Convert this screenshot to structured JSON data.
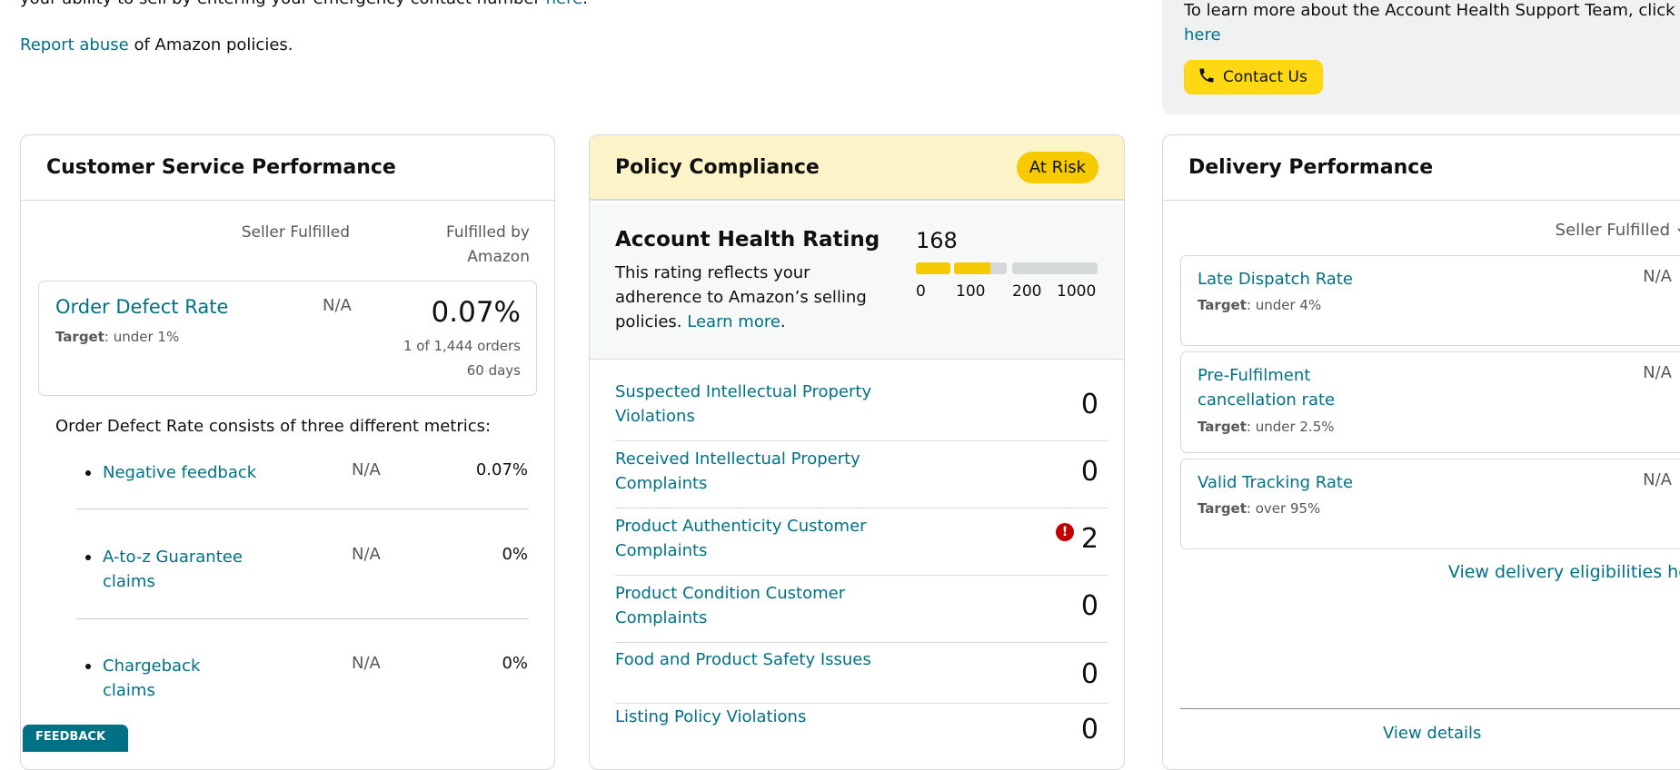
{
  "top": {
    "cut_text": "your ability to sell by entering your emergency contact number",
    "cut_link": "here",
    "cut_tail": ".",
    "report_link": "Report abuse",
    "report_text": " of Amazon policies."
  },
  "support": {
    "text": "To learn more about the Account Health Support Team, click",
    "link": "here",
    "button": "Contact Us"
  },
  "customer_service": {
    "title": "Customer Service Performance",
    "col_seller": "Seller Fulfilled",
    "col_fba_line1": "Fulfilled by",
    "col_fba_line2": "Amazon",
    "odr": {
      "title": "Order Defect Rate",
      "target_label": "Target",
      "target_value": ": under 1%",
      "seller_value": "N/A",
      "fba_value": "0.07%",
      "orders": "1 of 1,444 orders",
      "period": "60 days"
    },
    "consists": "Order Defect Rate consists of three different metrics:",
    "metrics": [
      {
        "name": "Negative feedback",
        "seller": "N/A",
        "fba": "0.07%"
      },
      {
        "name": "A-to-z Guarantee claims",
        "seller": "N/A",
        "fba": "0%"
      },
      {
        "name": "Chargeback claims",
        "seller": "N/A",
        "fba": "0%"
      }
    ]
  },
  "policy": {
    "title": "Policy Compliance",
    "badge": "At Risk",
    "ahr_title": "Account Health Rating",
    "ahr_desc": "This rating reflects your adherence to Amazon’s selling policies.",
    "ahr_learn": "Learn more",
    "ahr_score": "168",
    "ahr_ticks": [
      "0",
      "100",
      "200",
      "1000"
    ],
    "rows": [
      {
        "name": "Suspected Intellectual Property Violations",
        "value": "0"
      },
      {
        "name": "Received Intellectual Property Complaints",
        "value": "0"
      },
      {
        "name": "Product Authenticity Customer Complaints",
        "value": "2",
        "alert": "!"
      },
      {
        "name": "Product Condition Customer Complaints",
        "value": "0"
      },
      {
        "name": "Food and Product Safety Issues",
        "value": "0"
      },
      {
        "name": "Listing Policy Violations",
        "value": "0"
      }
    ],
    "colors": {
      "bar_fill": "#f7ca00",
      "bar_empty": "#d5d9d9",
      "alert": "#c40000"
    }
  },
  "delivery": {
    "title": "Delivery Performance",
    "filter": "Seller Fulfilled",
    "metrics": [
      {
        "name": "Late Dispatch Rate",
        "target_label": "Target",
        "target_value": ": under 4%",
        "value": "N/A"
      },
      {
        "name": "Pre-Fulfilment cancellation rate",
        "target_label": "Target",
        "target_value": ": under 2.5%",
        "value": "N/A"
      },
      {
        "name": "Valid Tracking Rate",
        "target_label": "Target",
        "target_value": ": over 95%",
        "value": "N/A"
      }
    ],
    "eligibility_link": "View delivery eligibilities here",
    "view_details": "View details"
  },
  "feedback_tab": "FEEDBACK"
}
